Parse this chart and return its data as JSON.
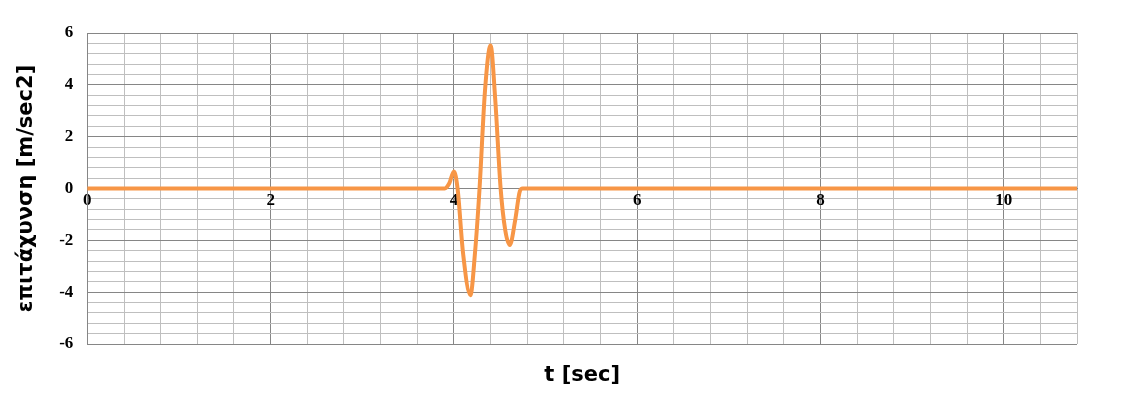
{
  "chart_data": {
    "type": "line",
    "xlabel": "t [sec]",
    "ylabel": "επιτάχυνση [m/sec2]",
    "x": [
      0,
      3.9,
      3.95,
      4.0,
      4.04,
      4.1,
      4.18,
      4.23,
      4.28,
      4.34,
      4.4,
      4.45,
      4.51,
      4.56,
      4.61,
      4.67,
      4.72,
      4.75,
      10.8
    ],
    "series": [
      {
        "color": "#f79646",
        "values": [
          0,
          0,
          0.2,
          0.66,
          0,
          -2.5,
          -4.12,
          -2.5,
          0,
          3.8,
          5.52,
          3.5,
          0,
          -1.6,
          -2.18,
          -1.2,
          -0.1,
          0,
          0
        ]
      }
    ],
    "xlim": [
      0,
      10.8
    ],
    "xticks": [
      0,
      {
        "value": 0.4,
        "label": null
      },
      {
        "value": 0.8,
        "label": null
      },
      {
        "value": 1.2,
        "label": null
      },
      {
        "value": 1.6,
        "label": null
      },
      2,
      {
        "value": 2.4,
        "label": null
      },
      {
        "value": 2.8,
        "label": null
      },
      {
        "value": 3.2,
        "label": null
      },
      {
        "value": 3.6,
        "label": null
      },
      4,
      {
        "value": 4.4,
        "label": null
      },
      {
        "value": 4.8,
        "label": null
      },
      {
        "value": 5.2,
        "label": null
      },
      {
        "value": 5.6,
        "label": null
      },
      6,
      {
        "value": 6.4,
        "label": null
      },
      {
        "value": 6.8,
        "label": null
      },
      {
        "value": 7.2,
        "label": null
      },
      {
        "value": 7.6,
        "label": null
      },
      8,
      {
        "value": 8.4,
        "label": null
      },
      {
        "value": 8.8,
        "label": null
      },
      {
        "value": 9.2,
        "label": null
      },
      {
        "value": 9.6,
        "label": null
      },
      10,
      {
        "value": 10.4,
        "label": null
      },
      {
        "value": 10.8,
        "label": null
      }
    ],
    "ylim": [
      -6,
      6
    ],
    "yticks": [
      -6,
      {
        "value": -5.6,
        "label": null
      },
      {
        "value": -5.2,
        "label": null
      },
      {
        "value": -4.8,
        "label": null
      },
      {
        "value": -4.4,
        "label": null
      },
      -4,
      {
        "value": -3.6,
        "label": null
      },
      {
        "value": -3.2,
        "label": null
      },
      {
        "value": -2.8,
        "label": null
      },
      {
        "value": -2.4,
        "label": null
      },
      -2,
      {
        "value": -1.6,
        "label": null
      },
      {
        "value": -1.2,
        "label": null
      },
      {
        "value": -0.8,
        "label": null
      },
      {
        "value": -0.4,
        "label": null
      },
      0,
      {
        "value": 0.4,
        "label": null
      },
      {
        "value": 0.8,
        "label": null
      },
      {
        "value": 1.2,
        "label": null
      },
      {
        "value": 1.6,
        "label": null
      },
      2,
      {
        "value": 2.4,
        "label": null
      },
      {
        "value": 2.8,
        "label": null
      },
      {
        "value": 3.2,
        "label": null
      },
      {
        "value": 3.6,
        "label": null
      },
      4,
      {
        "value": 4.4,
        "label": null
      },
      {
        "value": 4.8,
        "label": null
      },
      {
        "value": 5.2,
        "label": null
      },
      {
        "value": 5.6,
        "label": null
      },
      6
    ],
    "grid": true,
    "legend": false,
    "marker": "none",
    "line_style": "solid"
  }
}
